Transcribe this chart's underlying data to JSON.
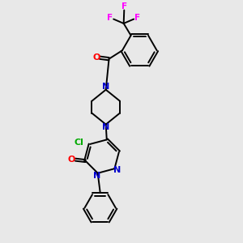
{
  "bg_color": "#e8e8e8",
  "bond_color": "#000000",
  "N_color": "#0000cc",
  "O_color": "#ff0000",
  "F_color": "#ff00ff",
  "Cl_color": "#00aa00",
  "lw": 1.4,
  "dbo": 0.06,
  "xlim": [
    0,
    10
  ],
  "ylim": [
    0,
    10
  ]
}
